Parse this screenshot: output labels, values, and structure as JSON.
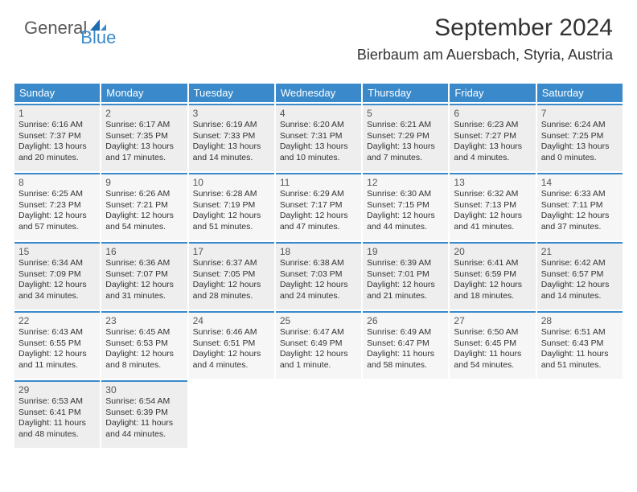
{
  "logo": {
    "text1": "General",
    "text2": "Blue"
  },
  "header": {
    "title": "September 2024",
    "location": "Bierbaum am Auersbach, Styria, Austria"
  },
  "colors": {
    "header_bg": "#3a8acb",
    "header_text": "#ffffff",
    "cell_bg": "#f9f9f9",
    "cell_alt_bg": "#eeeeee",
    "border": "#3a8acb",
    "text": "#333333"
  },
  "daynames": [
    "Sunday",
    "Monday",
    "Tuesday",
    "Wednesday",
    "Thursday",
    "Friday",
    "Saturday"
  ],
  "days": [
    {
      "n": 1,
      "sr": "6:16 AM",
      "ss": "7:37 PM",
      "dl": "13 hours and 20 minutes."
    },
    {
      "n": 2,
      "sr": "6:17 AM",
      "ss": "7:35 PM",
      "dl": "13 hours and 17 minutes."
    },
    {
      "n": 3,
      "sr": "6:19 AM",
      "ss": "7:33 PM",
      "dl": "13 hours and 14 minutes."
    },
    {
      "n": 4,
      "sr": "6:20 AM",
      "ss": "7:31 PM",
      "dl": "13 hours and 10 minutes."
    },
    {
      "n": 5,
      "sr": "6:21 AM",
      "ss": "7:29 PM",
      "dl": "13 hours and 7 minutes."
    },
    {
      "n": 6,
      "sr": "6:23 AM",
      "ss": "7:27 PM",
      "dl": "13 hours and 4 minutes."
    },
    {
      "n": 7,
      "sr": "6:24 AM",
      "ss": "7:25 PM",
      "dl": "13 hours and 0 minutes."
    },
    {
      "n": 8,
      "sr": "6:25 AM",
      "ss": "7:23 PM",
      "dl": "12 hours and 57 minutes."
    },
    {
      "n": 9,
      "sr": "6:26 AM",
      "ss": "7:21 PM",
      "dl": "12 hours and 54 minutes."
    },
    {
      "n": 10,
      "sr": "6:28 AM",
      "ss": "7:19 PM",
      "dl": "12 hours and 51 minutes."
    },
    {
      "n": 11,
      "sr": "6:29 AM",
      "ss": "7:17 PM",
      "dl": "12 hours and 47 minutes."
    },
    {
      "n": 12,
      "sr": "6:30 AM",
      "ss": "7:15 PM",
      "dl": "12 hours and 44 minutes."
    },
    {
      "n": 13,
      "sr": "6:32 AM",
      "ss": "7:13 PM",
      "dl": "12 hours and 41 minutes."
    },
    {
      "n": 14,
      "sr": "6:33 AM",
      "ss": "7:11 PM",
      "dl": "12 hours and 37 minutes."
    },
    {
      "n": 15,
      "sr": "6:34 AM",
      "ss": "7:09 PM",
      "dl": "12 hours and 34 minutes."
    },
    {
      "n": 16,
      "sr": "6:36 AM",
      "ss": "7:07 PM",
      "dl": "12 hours and 31 minutes."
    },
    {
      "n": 17,
      "sr": "6:37 AM",
      "ss": "7:05 PM",
      "dl": "12 hours and 28 minutes."
    },
    {
      "n": 18,
      "sr": "6:38 AM",
      "ss": "7:03 PM",
      "dl": "12 hours and 24 minutes."
    },
    {
      "n": 19,
      "sr": "6:39 AM",
      "ss": "7:01 PM",
      "dl": "12 hours and 21 minutes."
    },
    {
      "n": 20,
      "sr": "6:41 AM",
      "ss": "6:59 PM",
      "dl": "12 hours and 18 minutes."
    },
    {
      "n": 21,
      "sr": "6:42 AM",
      "ss": "6:57 PM",
      "dl": "12 hours and 14 minutes."
    },
    {
      "n": 22,
      "sr": "6:43 AM",
      "ss": "6:55 PM",
      "dl": "12 hours and 11 minutes."
    },
    {
      "n": 23,
      "sr": "6:45 AM",
      "ss": "6:53 PM",
      "dl": "12 hours and 8 minutes."
    },
    {
      "n": 24,
      "sr": "6:46 AM",
      "ss": "6:51 PM",
      "dl": "12 hours and 4 minutes."
    },
    {
      "n": 25,
      "sr": "6:47 AM",
      "ss": "6:49 PM",
      "dl": "12 hours and 1 minute."
    },
    {
      "n": 26,
      "sr": "6:49 AM",
      "ss": "6:47 PM",
      "dl": "11 hours and 58 minutes."
    },
    {
      "n": 27,
      "sr": "6:50 AM",
      "ss": "6:45 PM",
      "dl": "11 hours and 54 minutes."
    },
    {
      "n": 28,
      "sr": "6:51 AM",
      "ss": "6:43 PM",
      "dl": "11 hours and 51 minutes."
    },
    {
      "n": 29,
      "sr": "6:53 AM",
      "ss": "6:41 PM",
      "dl": "11 hours and 48 minutes."
    },
    {
      "n": 30,
      "sr": "6:54 AM",
      "ss": "6:39 PM",
      "dl": "11 hours and 44 minutes."
    }
  ],
  "labels": {
    "sunrise": "Sunrise:",
    "sunset": "Sunset:",
    "daylight": "Daylight:"
  }
}
